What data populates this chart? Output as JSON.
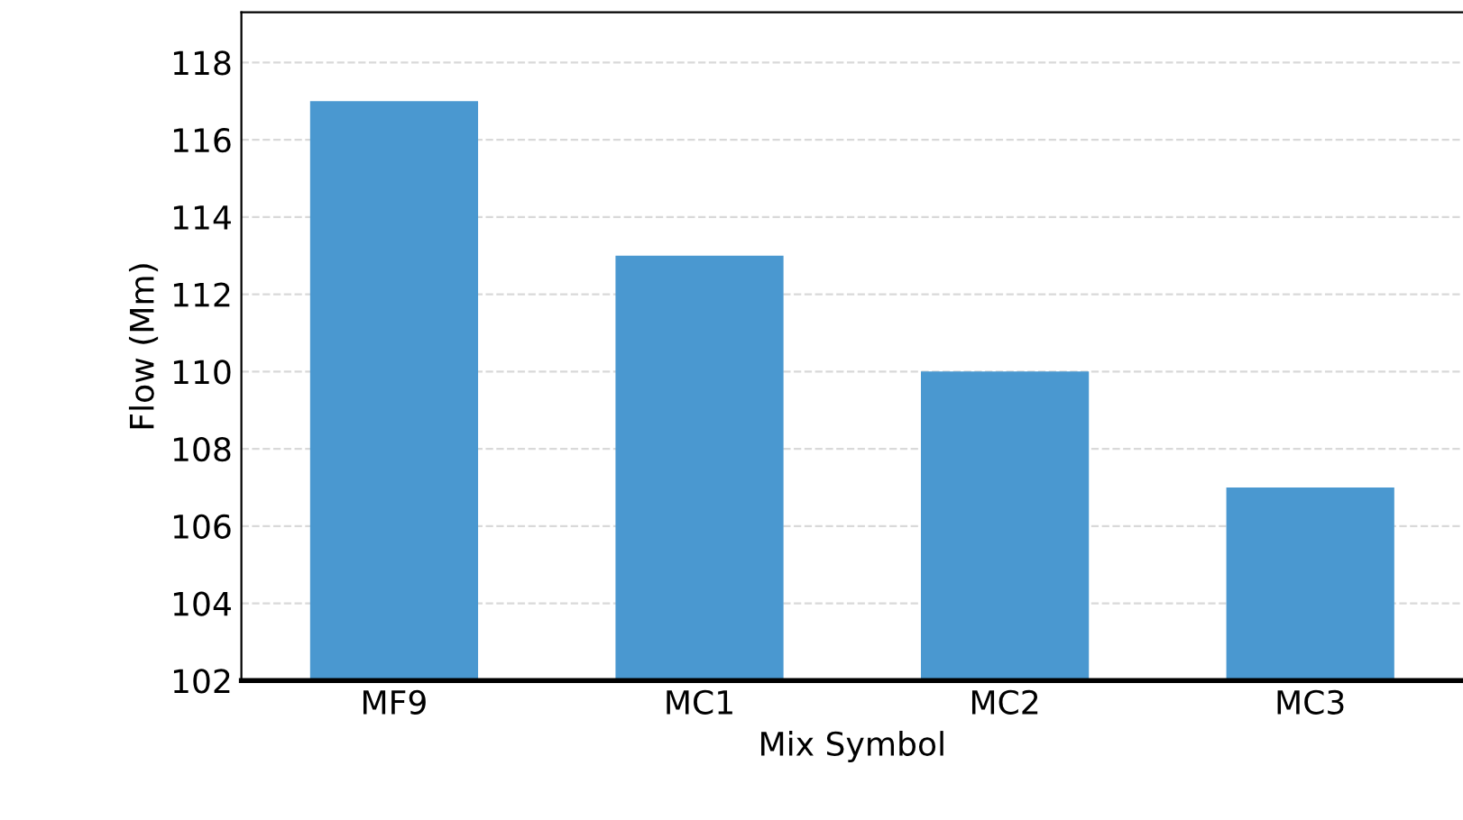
{
  "chart_data": {
    "type": "bar",
    "xlabel": "Mix Symbol",
    "ylabel": "Flow (Mm)",
    "categories": [
      "MF9",
      "MC1",
      "MC2",
      "MC3"
    ],
    "values": [
      117,
      113,
      110,
      107
    ],
    "color": "#4a98d0",
    "ylim": [
      102,
      119.3
    ],
    "yticks": [
      102,
      104,
      106,
      108,
      110,
      112,
      114,
      116,
      118
    ],
    "grid": "y"
  }
}
